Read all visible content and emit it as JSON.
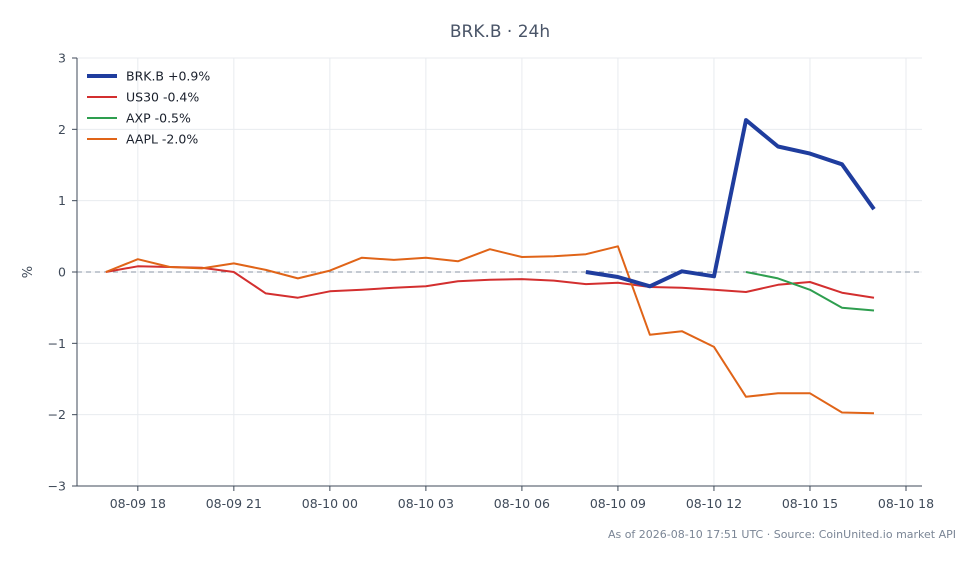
{
  "chart_data": {
    "type": "line",
    "title": "BRK.B · 24h",
    "ylabel": "%",
    "xlabel": "",
    "ylim": [
      -3,
      3
    ],
    "xlim": [
      -1.9,
      24.5
    ],
    "y_ticks": [
      3,
      2,
      1,
      0,
      -1,
      -2,
      -3
    ],
    "y_tick_labels": [
      "3",
      "2",
      "1",
      "0",
      "−1",
      "−2",
      "−3"
    ],
    "x_ticks": [
      0,
      3,
      6,
      9,
      12,
      15,
      18,
      21,
      24
    ],
    "x_tick_labels": [
      "08-09 18",
      "08-09 21",
      "08-10 00",
      "08-10 03",
      "08-10 06",
      "08-10 09",
      "08-10 12",
      "08-10 15",
      "08-10 18"
    ],
    "x_unit": "hours since 08-09 18:00",
    "grid": true,
    "zero_line": true,
    "legend_position": "top-left",
    "series": [
      {
        "name": "BRK.B +0.9%",
        "color": "#1f3d9e",
        "width": 4,
        "x": [
          14,
          15,
          16,
          17,
          18,
          19,
          20,
          21,
          22,
          23
        ],
        "y": [
          0.0,
          -0.07,
          -0.2,
          0.01,
          -0.06,
          2.13,
          1.76,
          1.66,
          1.51,
          0.88
        ]
      },
      {
        "name": "US30 -0.4%",
        "color": "#d32f2f",
        "width": 2,
        "x": [
          -1,
          0,
          1,
          2,
          3,
          4,
          5,
          6,
          7,
          8,
          9,
          10,
          11,
          12,
          13,
          14,
          15,
          16,
          17,
          18,
          19,
          20,
          21,
          22,
          23
        ],
        "y": [
          0.0,
          0.08,
          0.07,
          0.06,
          0.0,
          -0.3,
          -0.36,
          -0.27,
          -0.25,
          -0.22,
          -0.2,
          -0.13,
          -0.11,
          -0.1,
          -0.12,
          -0.17,
          -0.15,
          -0.21,
          -0.22,
          -0.25,
          -0.28,
          -0.18,
          -0.14,
          -0.29,
          -0.36
        ]
      },
      {
        "name": "AXP -0.5%",
        "color": "#2e9e4f",
        "width": 2,
        "x": [
          19,
          20,
          21,
          22,
          23
        ],
        "y": [
          0.0,
          -0.09,
          -0.25,
          -0.5,
          -0.54
        ]
      },
      {
        "name": "AAPL -2.0%",
        "color": "#e06418",
        "width": 2,
        "x": [
          -1,
          0,
          1,
          2,
          3,
          4,
          5,
          6,
          7,
          8,
          9,
          10,
          11,
          12,
          13,
          14,
          15,
          16,
          17,
          18,
          19,
          20,
          21,
          22,
          23
        ],
        "y": [
          0.0,
          0.18,
          0.07,
          0.05,
          0.12,
          0.03,
          -0.09,
          0.02,
          0.2,
          0.17,
          0.2,
          0.15,
          0.32,
          0.21,
          0.22,
          0.25,
          0.36,
          -0.88,
          -0.83,
          -1.05,
          -1.75,
          -1.7,
          -1.7,
          -1.97,
          -1.98
        ]
      }
    ],
    "footer": "As of 2026-08-10 17:51 UTC · Source: CoinUnited.io market API"
  }
}
